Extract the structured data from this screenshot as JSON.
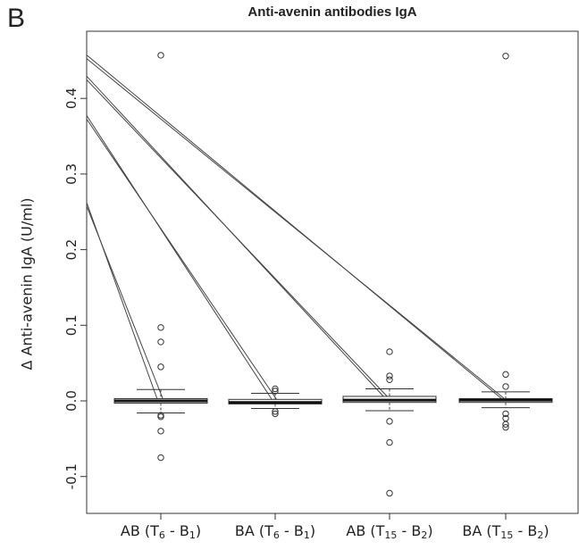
{
  "panel_letter": "B",
  "chart_data": {
    "type": "boxplot",
    "title": "Anti-avenin antibodies IgA",
    "ylabel": "Δ Anti-avenin IgA (U/ml)",
    "xlabel": "",
    "ylim": [
      -0.15,
      0.47
    ],
    "yticks": [
      "-0.1",
      "0.0",
      "0.1",
      "0.2",
      "0.3",
      "0.4"
    ],
    "ytick_values": [
      -0.1,
      0.0,
      0.1,
      0.2,
      0.3,
      0.4
    ],
    "grid": false,
    "categories": [
      {
        "pre": "AB (T",
        "sub1": "6",
        "mid": " - B",
        "sub2": "1",
        "post": ")"
      },
      {
        "pre": "BA (T",
        "sub1": "6",
        "mid": " - B",
        "sub2": "1",
        "post": ")"
      },
      {
        "pre": "AB (T",
        "sub1": "15",
        "mid": " - B",
        "sub2": "2",
        "post": ")"
      },
      {
        "pre": "BA (T",
        "sub1": "15",
        "mid": " - B",
        "sub2": "2",
        "post": ")"
      }
    ],
    "boxes": [
      {
        "q1": -0.003,
        "median": 0.0,
        "q3": 0.003,
        "whisker_low": -0.016,
        "whisker_high": 0.015,
        "outliers": [
          0.457,
          0.097,
          0.078,
          0.045,
          -0.019,
          -0.021,
          -0.04,
          -0.075
        ]
      },
      {
        "q1": -0.004,
        "median": -0.002,
        "q3": 0.002,
        "whisker_low": -0.01,
        "whisker_high": 0.01,
        "outliers": [
          0.016,
          0.013,
          -0.014,
          -0.017
        ]
      },
      {
        "q1": -0.002,
        "median": 0.001,
        "q3": 0.006,
        "whisker_low": -0.013,
        "whisker_high": 0.016,
        "outliers": [
          0.065,
          0.033,
          0.028,
          -0.027,
          -0.055,
          -0.122
        ]
      },
      {
        "q1": -0.002,
        "median": 0.001,
        "q3": 0.003,
        "whisker_low": -0.009,
        "whisker_high": 0.012,
        "outliers": [
          0.456,
          0.035,
          0.019,
          -0.017,
          -0.023,
          -0.031,
          -0.035
        ]
      }
    ],
    "connecting_lines": [
      {
        "y_start": 0.26,
        "target_category": 0
      },
      {
        "y_start": 0.375,
        "target_category": 1
      },
      {
        "y_start": 0.427,
        "target_category": 2
      },
      {
        "y_start": 0.455,
        "target_category": 3
      }
    ]
  }
}
